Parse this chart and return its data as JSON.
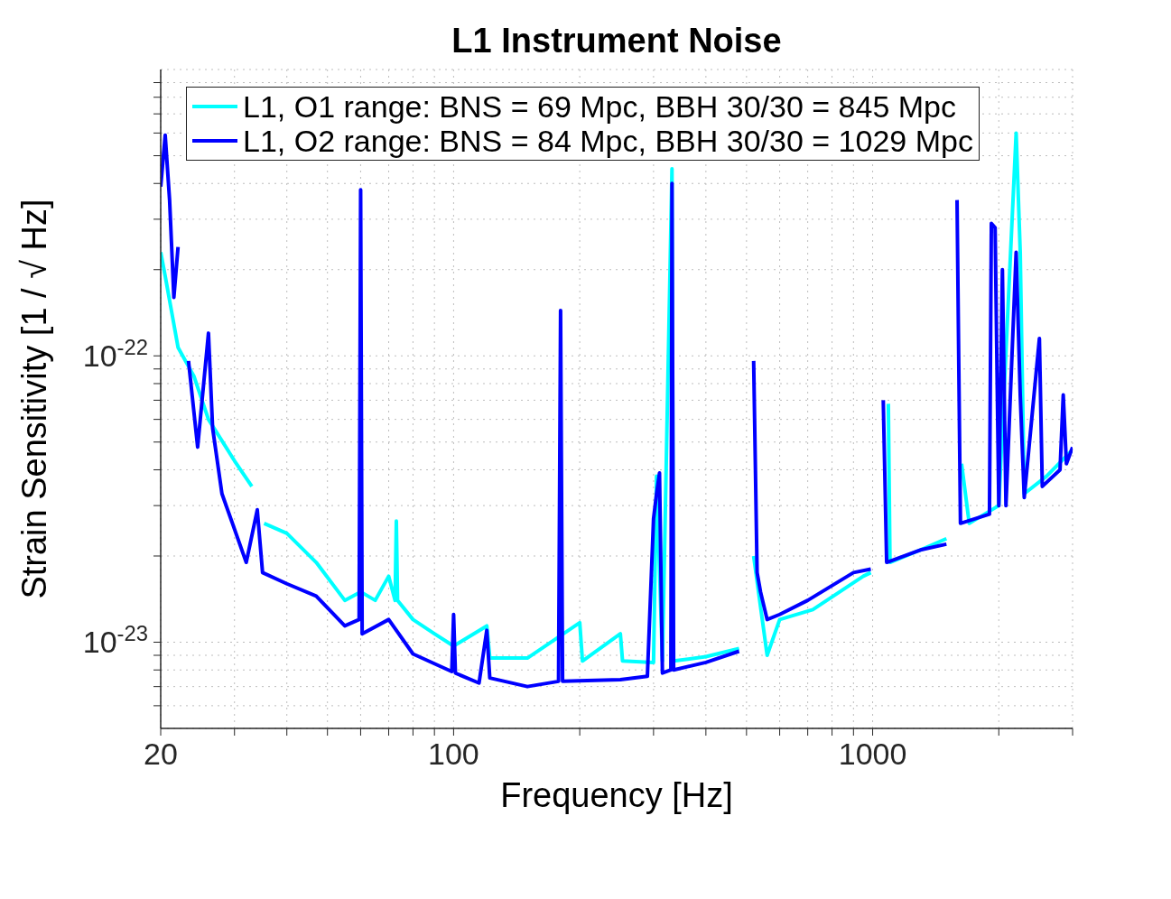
{
  "chart_data": {
    "type": "line",
    "title": "L1 Instrument Noise",
    "xlabel": "Frequency [Hz]",
    "ylabel": "Strain Sensitivity [1 / √ Hz]",
    "log": "xy",
    "grid": true,
    "legend": "top",
    "marker": "none",
    "line_style": "solid",
    "xlim": [
      20,
      3000
    ],
    "ylim": [
      5e-24,
      1e-21
    ],
    "xticks": [
      20,
      {
        "value": 30,
        "label": null
      },
      {
        "value": 40,
        "label": null
      },
      {
        "value": 50,
        "label": null
      },
      {
        "value": 60,
        "label": null
      },
      {
        "value": 70,
        "label": null
      },
      {
        "value": 80,
        "label": null
      },
      {
        "value": 90,
        "label": null
      },
      100,
      {
        "value": 200,
        "label": null
      },
      {
        "value": 300,
        "label": null
      },
      {
        "value": 400,
        "label": null
      },
      {
        "value": 500,
        "label": null
      },
      {
        "value": 600,
        "label": null
      },
      {
        "value": 700,
        "label": null
      },
      {
        "value": 800,
        "label": null
      },
      {
        "value": 900,
        "label": null
      },
      1000,
      {
        "value": 2000,
        "label": null
      },
      {
        "value": 3000,
        "label": null
      }
    ],
    "yticks": [
      {
        "value": 6e-24,
        "label": null
      },
      {
        "value": 7e-24,
        "label": null
      },
      {
        "value": 8e-24,
        "label": null
      },
      {
        "value": 9e-24,
        "label": null
      },
      {
        "value": 1e-23,
        "label": "10$^{-23}$"
      },
      {
        "value": 2e-23,
        "label": null
      },
      {
        "value": 3e-23,
        "label": null
      },
      {
        "value": 4e-23,
        "label": null
      },
      {
        "value": 5e-23,
        "label": null
      },
      {
        "value": 6e-23,
        "label": null
      },
      {
        "value": 7e-23,
        "label": null
      },
      {
        "value": 8e-23,
        "label": null
      },
      {
        "value": 9e-23,
        "label": null
      },
      {
        "value": 1e-22,
        "label": "10$^{-22}$"
      },
      {
        "value": 2e-22,
        "label": null
      },
      {
        "value": 3e-22,
        "label": null
      },
      {
        "value": 4e-22,
        "label": null
      },
      {
        "value": 5e-22,
        "label": null
      },
      {
        "value": 6e-22,
        "label": null
      },
      {
        "value": 7e-22,
        "label": null
      },
      {
        "value": 8e-22,
        "label": null
      },
      {
        "value": 9e-22,
        "label": null
      }
    ],
    "series": [
      {
        "name": "L1, O1 range: BNS = 69 Mpc, BBH 30/30 = 845 Mpc",
        "color": "#00ffff",
        "x": [
          20,
          20.5,
          22,
          24,
          26,
          30,
          33,
          34,
          34.8,
          35.3,
          40,
          47,
          55,
          60,
          65,
          70,
          72.5,
          73,
          73.5,
          80,
          90,
          100,
          120,
          122,
          150,
          200,
          203,
          250,
          253,
          300,
          305,
          315,
          332,
          335,
          400,
          480,
          500,
          510,
          520,
          560,
          600,
          720,
          950,
          990,
          1000,
          1030,
          1090,
          1100,
          1300,
          1500,
          1550,
          1600,
          1630,
          1700,
          2000,
          2200,
          2250,
          2300,
          2600,
          3000
        ],
        "values": [
          2.3e-22,
          1.9e-22,
          1.07e-22,
          8.5e-23,
          6e-23,
          4.3e-23,
          3.5e-23,
          null,
          null,
          2.6e-23,
          2.4e-23,
          1.9e-23,
          1.4e-23,
          1.5e-23,
          1.4e-23,
          1.7e-23,
          1.4e-23,
          2.65e-23,
          1.4e-23,
          1.2e-23,
          1.07e-23,
          9.7e-24,
          1.14e-23,
          8.8e-24,
          8.8e-24,
          1.17e-23,
          8.6e-24,
          1.07e-23,
          8.6e-24,
          8.5e-24,
          3.8e-23,
          8.6e-24,
          4.5e-22,
          8.6e-24,
          8.9e-24,
          9.5e-24,
          null,
          null,
          2e-23,
          9e-24,
          1.2e-23,
          1.3e-23,
          1.7e-23,
          1.75e-23,
          null,
          null,
          6.8e-23,
          1.9e-23,
          2.1e-23,
          2.3e-23,
          null,
          null,
          4.2e-23,
          2.6e-23,
          3e-23,
          6e-22,
          2.3e-22,
          3.3e-23,
          3.8e-23,
          4.7e-23
        ]
      },
      {
        "name": "L1, O2 range: BNS = 84 Mpc, BBH 30/30 = 1029 Mpc",
        "color": "#0000ff",
        "x": [
          20,
          20.5,
          21,
          21.5,
          22,
          22.5,
          23,
          23.3,
          24.5,
          26,
          26.6,
          28,
          32,
          34,
          35,
          40,
          47,
          55,
          59.5,
          60,
          60.5,
          70,
          80,
          99,
          100,
          101,
          115,
          120,
          122,
          150,
          178,
          180,
          182,
          250,
          290,
          300,
          305,
          310,
          315,
          330,
          332,
          335,
          400,
          480,
          500,
          510,
          520,
          530,
          540,
          560,
          600,
          700,
          900,
          990,
          1000,
          1030,
          1060,
          1080,
          1300,
          1500,
          1530,
          1570,
          1590,
          1620,
          1900,
          1920,
          1960,
          2000,
          2040,
          2080,
          2200,
          2250,
          2300,
          2500,
          2540,
          2800,
          2850,
          2900,
          3000
        ],
        "values": [
          3.9e-22,
          5.9e-22,
          3.5e-22,
          1.6e-22,
          2.4e-22,
          null,
          null,
          9.6e-23,
          4.8e-23,
          1.2e-22,
          5.6e-23,
          3.3e-23,
          1.9e-23,
          2.9e-23,
          1.75e-23,
          1.6e-23,
          1.45e-23,
          1.14e-23,
          1.2e-23,
          3.8e-22,
          1.07e-23,
          1.2e-23,
          9.1e-24,
          7.9e-24,
          1.25e-23,
          7.8e-24,
          7.2e-24,
          1.1e-23,
          7.5e-24,
          7e-24,
          7.3e-24,
          1.44e-22,
          7.3e-24,
          7.4e-24,
          7.6e-24,
          2.7e-23,
          3.3e-23,
          3.9e-23,
          7.8e-24,
          8e-24,
          4e-22,
          8e-24,
          8.5e-24,
          9.3e-24,
          null,
          null,
          9.6e-23,
          1.75e-23,
          1.5e-23,
          1.2e-23,
          1.25e-23,
          1.4e-23,
          1.75e-23,
          1.8e-23,
          null,
          null,
          7e-23,
          1.9e-23,
          2.1e-23,
          2.2e-23,
          null,
          null,
          3.5e-22,
          2.6e-23,
          2.8e-23,
          2.9e-22,
          2.8e-22,
          3e-23,
          2e-22,
          3e-23,
          2.3e-22,
          7.3e-23,
          3.2e-23,
          1.15e-22,
          3.5e-23,
          4e-23,
          7.3e-23,
          4.2e-23,
          4.8e-23
        ]
      }
    ]
  }
}
